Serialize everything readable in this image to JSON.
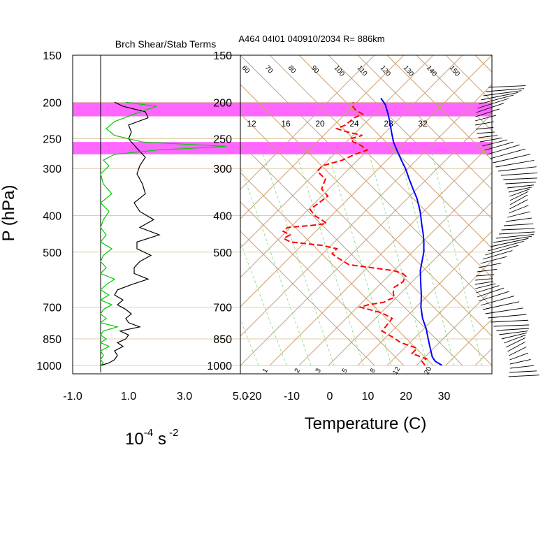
{
  "chart_data": [
    {
      "type": "line",
      "title": "Brch Shear/Stab Terms",
      "xlabel": "10",
      "xlabel_exp": "-4",
      "xlabel_unit": "s",
      "xlabel_unit_exp": "-2",
      "ylabel": "P (hPa)",
      "xlim": [
        -1.0,
        5.0
      ],
      "ylim": [
        1000,
        150
      ],
      "y_scale": "log",
      "x_ticks": [
        "-1.0",
        "1.0",
        "3.0",
        "5.0"
      ],
      "y_ticks": [
        "150",
        "200",
        "250",
        "300",
        "400",
        "500",
        "700",
        "850",
        "1000"
      ],
      "grid": "horizontal pressure lines",
      "shaded_layers": [
        [
          200,
          218
        ],
        [
          255,
          275
        ]
      ],
      "series": [
        {
          "color": "#000000",
          "x": [
            0.0,
            0.3,
            0.5,
            0.6,
            0.5,
            0.8,
            0.6,
            0.9,
            1.0,
            0.7,
            1.4,
            1.0,
            0.9,
            1.1,
            0.9,
            0.6,
            0.8,
            0.5,
            0.6,
            1.1,
            1.7,
            1.2,
            1.2,
            1.4,
            1.8,
            1.3,
            1.3,
            2.1,
            1.4,
            1.9,
            1.4,
            1.2,
            1.6,
            1.5,
            1.3,
            1.4,
            1.6,
            1.3,
            1.0,
            1.1,
            1.0,
            1.7,
            1.6,
            0.8,
            0.5
          ],
          "y": [
            1000,
            985,
            965,
            940,
            915,
            890,
            870,
            850,
            830,
            810,
            790,
            770,
            750,
            730,
            710,
            690,
            670,
            650,
            630,
            610,
            590,
            570,
            550,
            530,
            510,
            490,
            470,
            450,
            430,
            410,
            390,
            370,
            350,
            330,
            310,
            295,
            280,
            265,
            250,
            240,
            230,
            220,
            212,
            205,
            200
          ]
        },
        {
          "color": "#00cc00",
          "x": [
            0.0,
            0.1,
            0.0,
            0.1,
            0.0,
            0.3,
            0.0,
            0.2,
            0.0,
            0.1,
            0.6,
            0.0,
            0.2,
            0.0,
            0.1,
            0.4,
            0.0,
            0.3,
            0.0,
            0.2,
            0.5,
            0.0,
            0.2,
            0.0,
            0.1,
            0.4,
            0.0,
            0.2,
            0.0,
            0.1,
            0.3,
            0.0,
            0.4,
            0.1,
            0.0,
            0.3,
            0.1,
            0.5,
            2.0,
            4.5,
            1.5,
            0.5,
            0.2,
            0.5,
            1.2,
            2.0,
            0.9
          ],
          "y": [
            1000,
            985,
            965,
            940,
            915,
            890,
            870,
            850,
            830,
            810,
            790,
            770,
            750,
            730,
            710,
            690,
            670,
            650,
            630,
            610,
            590,
            570,
            550,
            530,
            510,
            490,
            470,
            450,
            430,
            410,
            390,
            370,
            350,
            330,
            310,
            295,
            285,
            275,
            268,
            262,
            255,
            245,
            235,
            225,
            215,
            205,
            200
          ]
        }
      ]
    },
    {
      "type": "line",
      "title": "A464 04I01 040910/2034 R= 886km",
      "xlabel": "Temperature (C)",
      "xlim": [
        -25,
        43
      ],
      "ylim": [
        1000,
        150
      ],
      "x_ticks": [
        "-20",
        "-10",
        "0",
        "10",
        "20",
        "30"
      ],
      "y_ticks": [
        "150",
        "200",
        "250",
        "300",
        "400",
        "500",
        "700",
        "850",
        "1000"
      ],
      "shaded_layers": [
        [
          200,
          218
        ],
        [
          255,
          275
        ]
      ],
      "mixing_ratio_labels_upper": [
        "12",
        "16",
        "20",
        "24",
        "28",
        "32"
      ],
      "mixing_ratio_labels_lower": [
        "1",
        "2",
        "3",
        "5",
        "8",
        "12",
        "20"
      ],
      "isotherm_labels": [
        "60",
        "70",
        "80",
        "90",
        "100",
        "110",
        "120",
        "130",
        "140",
        "150"
      ],
      "series": [
        {
          "name": "temperature",
          "color": "#0000ff",
          "dash": "solid",
          "x": [
            29.5,
            27.5,
            26.5,
            25.5,
            24.5,
            23.5,
            22.0,
            21.0,
            20.5,
            20.0,
            19.5,
            19.0,
            19.0,
            19.0,
            18.5,
            18.0,
            17.0,
            16.0,
            14.5,
            13.0,
            11.5,
            10.0,
            8.5,
            7.0,
            5.5,
            4.5,
            3.5,
            2.5,
            1.5,
            0.0
          ],
          "y": [
            1000,
            975,
            950,
            900,
            850,
            800,
            750,
            700,
            650,
            620,
            590,
            560,
            530,
            500,
            470,
            450,
            420,
            390,
            360,
            340,
            320,
            300,
            285,
            270,
            255,
            240,
            225,
            213,
            203,
            195
          ]
        },
        {
          "name": "dewpoint",
          "color": "#ff0000",
          "dash": "dashed",
          "x": [
            25.0,
            24.0,
            25.0,
            21.0,
            22.0,
            17.5,
            15.0,
            12.0,
            13.0,
            14.0,
            11.0,
            5.0,
            7.0,
            11.0,
            12.0,
            13.5,
            13.0,
            13.0,
            15.0,
            15.5,
            14.5,
            12.0,
            0.0,
            -3.0,
            -5.0,
            -4.0,
            -8.0,
            -16.5,
            -18.5,
            -17.0,
            -19.0,
            -18.0,
            -12.0,
            -8.0,
            -9.5,
            -11.5,
            -13.0,
            -11.0,
            -9.0,
            -11.0,
            -10.5,
            -13.0,
            -12.0,
            -7.0,
            -4.0,
            -1.0,
            -3.0,
            -5.0,
            -6.0,
            -3.0,
            -7.0,
            -10.0,
            -8.0,
            -7.0,
            -6.0,
            -4.0,
            -6.0,
            -7.0,
            -7.0
          ],
          "y": [
            1000,
            975,
            960,
            930,
            900,
            870,
            840,
            810,
            780,
            750,
            725,
            700,
            690,
            680,
            670,
            660,
            640,
            620,
            600,
            580,
            570,
            560,
            540,
            520,
            505,
            490,
            480,
            470,
            460,
            450,
            440,
            430,
            425,
            420,
            410,
            400,
            385,
            370,
            355,
            340,
            320,
            305,
            295,
            285,
            275,
            268,
            260,
            255,
            250,
            245,
            240,
            235,
            230,
            225,
            220,
            215,
            210,
            205,
            200
          ]
        }
      ]
    }
  ]
}
